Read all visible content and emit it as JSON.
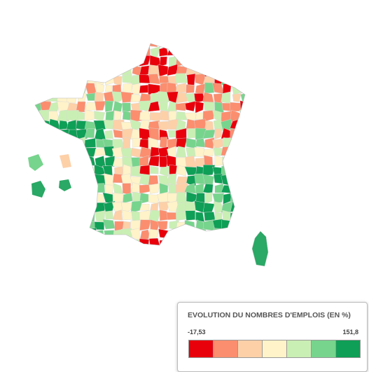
{
  "legend": {
    "title": "EVOLUTION DU NOMBRES D'EMPLOIS (EN %)",
    "min": "-17,53",
    "max": "151,8",
    "colors": [
      "#e8000b",
      "#fb8e6e",
      "#fdd0a8",
      "#fff3c9",
      "#caefb4",
      "#77d48d",
      "#0f9f56"
    ]
  }
}
